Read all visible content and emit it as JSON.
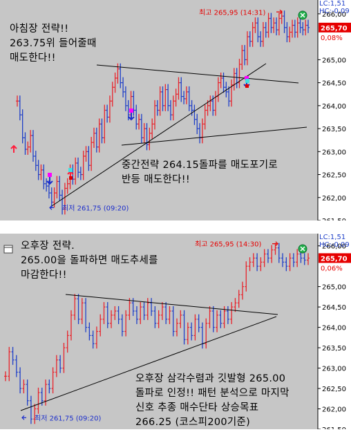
{
  "chart_data": [
    {
      "type": "bar",
      "style": "ohlc",
      "price_axis_labels": [
        "266,00",
        "265,00",
        "264,50",
        "264,00",
        "263,50",
        "263,00",
        "262,50",
        "262,00",
        "261,50"
      ],
      "ylim": [
        261.5,
        266.3
      ],
      "header_readouts": [
        "LC:1,51",
        "HC:-0,09"
      ],
      "last_price_label": "265,70",
      "change_label": "0,08%",
      "high_label": "최고 265,95 (14:31)",
      "low_label": "최저 261,75 (09:20)",
      "annotations": [
        "아침장 전략!!\n263.75위 들어줄때\n매도한다!!",
        "중간전략 264.15돌파를 매도포기로\n반등 매도한다!!"
      ],
      "colors": {
        "up": "#e8232b",
        "down": "#2040c8",
        "background": "#c6c6c6",
        "axis_bg": "#ffffff",
        "last_price_bg": "#e60000"
      },
      "icons": [
        "green-x-marker-icon"
      ],
      "signals": [
        {
          "kind": "sell",
          "color": "#3050e0"
        },
        {
          "kind": "buy",
          "color": "#ff1e3c"
        }
      ],
      "series": [
        {
          "values": [
            264.1,
            263.8,
            263.3,
            263.05,
            263.1,
            263.35,
            262.9,
            262.7,
            262.5,
            262.6,
            262.3,
            262.25,
            262.1,
            261.9,
            262.1,
            262.35,
            262.05,
            261.75,
            262.2,
            262.3,
            262.6,
            262.4,
            262.75,
            262.55,
            262.5,
            262.9,
            263.0,
            262.7,
            263.2,
            263.4,
            263.1,
            263.6,
            263.3,
            263.9,
            263.75,
            264.1,
            264.4,
            264.6,
            264.8,
            264.5,
            264.3,
            264.0,
            263.8,
            264.2,
            263.9,
            263.6,
            263.7,
            263.3,
            263.5,
            263.15,
            263.4,
            263.6,
            264.0,
            263.9,
            264.3,
            264.0,
            264.35,
            264.0,
            263.8,
            264.1,
            264.25,
            264.5,
            264.2,
            264.15,
            264.3,
            264.0,
            263.9,
            263.7,
            263.5,
            263.3,
            263.6,
            263.9,
            264.0,
            264.1,
            263.9,
            264.2,
            264.5,
            264.6,
            264.4,
            264.3,
            264.1,
            264.45,
            264.7,
            264.5,
            264.9,
            265.2,
            265.0,
            265.5,
            265.4,
            265.7,
            265.8,
            265.5,
            265.4,
            265.7,
            265.6,
            265.9,
            265.7,
            265.8,
            265.65,
            265.9,
            265.95,
            265.7,
            265.5,
            265.6,
            265.75,
            265.6,
            265.8,
            265.7,
            265.65,
            265.75,
            265.7
          ]
        }
      ]
    },
    {
      "type": "bar",
      "style": "ohlc",
      "price_axis_labels": [
        "266,00",
        "265,00",
        "264,50",
        "264,00",
        "263,50",
        "263,00",
        "262,50",
        "262,00",
        "261,50"
      ],
      "ylim": [
        261.5,
        266.3
      ],
      "header_readouts": [
        "LC:1,51",
        "HC:-0,09"
      ],
      "last_price_label": "265,70",
      "change_label": "0,06%",
      "high_label": "최고 265,95 (14:30)",
      "low_label": "최저 261,75 (09:20)",
      "annotations": [
        "오후장 전략.\n265.00을 돌파하면 매도추세를\n마감한다!!",
        "오후장 삼각수렴과 깃발형 265.00\n돌파로 인정!! 패턴 분석으로 마지막\n신호 추종 매수단타 상승목표\n266.25 (코스피200기준)"
      ],
      "colors": {
        "up": "#e8232b",
        "down": "#2040c8",
        "background": "#c6c6c6",
        "axis_bg": "#ffffff",
        "last_price_bg": "#e60000"
      },
      "icons": [
        "window-icon",
        "green-x-marker-icon"
      ],
      "series": [
        {
          "values": [
            262.8,
            263.4,
            263.2,
            262.9,
            262.5,
            262.6,
            262.2,
            261.75,
            262.0,
            262.4,
            262.2,
            262.6,
            262.5,
            262.9,
            263.2,
            263.0,
            263.5,
            263.8,
            264.3,
            264.7,
            264.2,
            264.6,
            264.0,
            263.8,
            263.6,
            263.9,
            264.2,
            264.5,
            264.1,
            264.3,
            264.4,
            264.2,
            263.9,
            264.3,
            264.6,
            264.4,
            264.2,
            264.5,
            264.3,
            264.6,
            264.4,
            264.1,
            264.3,
            264.5,
            264.2,
            264.4,
            263.9,
            264.1,
            264.3,
            263.7,
            264.0,
            263.8,
            264.2,
            264.0,
            263.6,
            264.1,
            264.4,
            264.0,
            264.3,
            264.1,
            264.4,
            264.2,
            264.5,
            264.6,
            264.8,
            265.0,
            265.5,
            265.6,
            265.7,
            265.5,
            265.6,
            265.8,
            265.7,
            265.9,
            265.95,
            265.7,
            265.6,
            265.5,
            265.7,
            265.6,
            265.8,
            265.7,
            265.65,
            265.7
          ]
        }
      ]
    }
  ]
}
